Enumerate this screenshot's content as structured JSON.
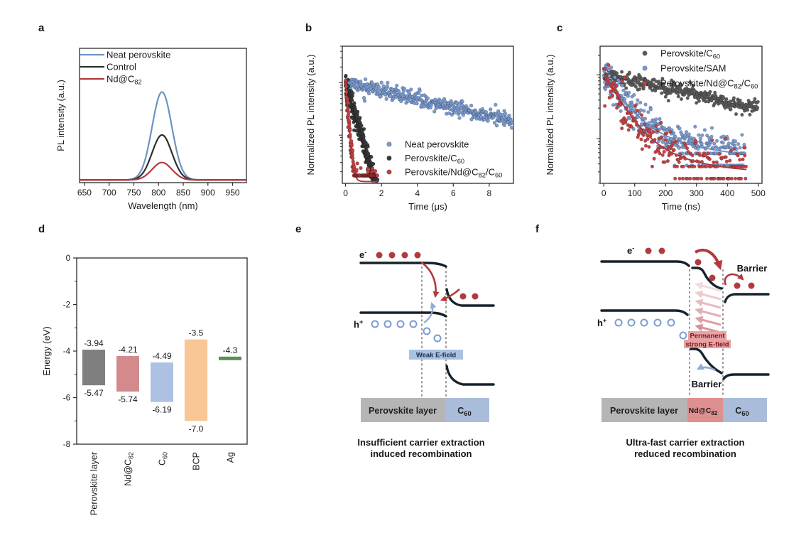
{
  "figure": {
    "background": "#ffffff",
    "panel_letters": {
      "a": "a",
      "b": "b",
      "c": "c",
      "d": "d",
      "e": "e",
      "f": "f"
    }
  },
  "chart_data": [
    {
      "panel": "a",
      "type": "line",
      "title": "",
      "xlabel": "Wavelength (nm)",
      "ylabel": "PL intensity (a.u.)",
      "xlim": [
        640,
        978
      ],
      "xticks": [
        650,
        700,
        750,
        800,
        850,
        900,
        950
      ],
      "peak_center_nm": 807,
      "peak_sigma_nm": 20,
      "baseline": 0.02,
      "legend_position": "top-left",
      "series": [
        {
          "name": "Neat perovskite",
          "segments": [
            {
              "text": "Neat perovskite"
            }
          ],
          "color": "#6e92c3",
          "peak": 0.655
        },
        {
          "name": "Control",
          "segments": [
            {
              "text": "Control"
            }
          ],
          "color": "#2e2e2e",
          "peak": 0.335
        },
        {
          "name": "Nd@C82",
          "segments": [
            {
              "text": "Nd@C"
            },
            {
              "text": "82",
              "sub": true
            }
          ],
          "color": "#b23a3c",
          "peak": 0.13
        }
      ]
    },
    {
      "panel": "b",
      "type": "decay",
      "xlabel": "Time (μs)",
      "ylabel": "Normalized PL intensity (a.u.)",
      "xlim": [
        -0.18,
        9.35
      ],
      "xticks": [
        0,
        2,
        4,
        6,
        8
      ],
      "yaxis": {
        "scale": "log",
        "top_value": 5,
        "decades": 2.62
      },
      "legend_position": "bottom-right",
      "series": [
        {
          "name": "Neat perovskite",
          "segments": [
            {
              "text": "Neat perovskite"
            }
          ],
          "color": "#7b9cd2",
          "line_color": "#6d92cc",
          "components": [
            {
              "a": 1.0,
              "tau": 5.5
            }
          ],
          "floor": 0,
          "tmax": 9.3,
          "n": 400,
          "noise": 0.16,
          "seed": 11,
          "fit": false,
          "r": 2.4
        },
        {
          "name": "Perovskite/C60",
          "segments": [
            {
              "text": "Perovskite/C"
            },
            {
              "text": "60",
              "sub": true
            }
          ],
          "color": "#3a3a3a",
          "line_color": "#222222",
          "components": [
            {
              "a": 1.0,
              "tau": 0.38
            }
          ],
          "floor": 0,
          "tmax": 1.8,
          "n": 300,
          "noise": 0.25,
          "seed": 22,
          "fit": true,
          "r": 2.4
        },
        {
          "name": "Perovskite/Nd@C82/C60",
          "segments": [
            {
              "text": "Perovskite/Nd@C"
            },
            {
              "text": "82",
              "sub": true
            },
            {
              "text": "/C"
            },
            {
              "text": "60",
              "sub": true
            }
          ],
          "color": "#c44143",
          "line_color": "#b23537",
          "components": [
            {
              "a": 1.0,
              "tau": 0.1
            }
          ],
          "floor": 0.013,
          "tmax": 1.78,
          "n": 260,
          "noise": 0.25,
          "seed": 33,
          "fit": true,
          "r": 2.4
        }
      ]
    },
    {
      "panel": "c",
      "type": "decay",
      "xlabel": "Time (ns)",
      "ylabel": "Normalized PL intensity (a.u.)",
      "xlim": [
        -12,
        512
      ],
      "xticks": [
        0,
        100,
        200,
        300,
        400,
        500
      ],
      "yaxis": {
        "scale": "log",
        "top_value": 2.8,
        "decades": 2.15
      },
      "legend_position": "top-right",
      "series": [
        {
          "name": "Perovskite/C60",
          "segments": [
            {
              "text": "Perovskite/C"
            },
            {
              "text": "60",
              "sub": true
            }
          ],
          "color": "#5c5c5c",
          "line_color": "#454545",
          "components": [
            {
              "a": 1.0,
              "tau": 400
            }
          ],
          "floor": 0,
          "tmax": 500,
          "n": 360,
          "noise": 0.13,
          "seed": 44,
          "fit": true,
          "r": 2.3
        },
        {
          "name": "Perovskite/SAM",
          "segments": [
            {
              "text": "Perovskite/SAM"
            }
          ],
          "color": "#7b9cd2",
          "line_color": "#6d92cc",
          "components": [
            {
              "a": 0.85,
              "tau": 55
            },
            {
              "a": 0.12,
              "tau": 200
            }
          ],
          "floor": 0.045,
          "tmax": 458,
          "n": 360,
          "noise": 0.3,
          "seed": 55,
          "fit": true,
          "r": 2.3
        },
        {
          "name": "Perovskite/Nd@C82/C60",
          "segments": [
            {
              "text": "Perovskite/Nd@C"
            },
            {
              "text": "82",
              "sub": true
            },
            {
              "text": "/C"
            },
            {
              "text": "60",
              "sub": true
            }
          ],
          "color": "#c44143",
          "line_color": "#b23537",
          "components": [
            {
              "a": 0.9,
              "tau": 48
            },
            {
              "a": 0.1,
              "tau": 150
            }
          ],
          "floor": 0.028,
          "tmax": 462,
          "n": 230,
          "noise": 0.35,
          "seed": 66,
          "fit": true,
          "r": 2.3
        }
      ]
    },
    {
      "panel": "d",
      "type": "bar-range",
      "ylabel": "Energy (eV)",
      "ylim": [
        -8,
        0
      ],
      "yticks": [
        0,
        -2,
        -4,
        -6,
        -8
      ],
      "yminor_step": 1,
      "bars": [
        {
          "label": "Perovskite layer",
          "segments": [
            {
              "text": "Perovskite layer"
            }
          ],
          "color": "#7f7f7f",
          "top": -3.94,
          "bottom": -5.47,
          "top_label": "-3.94",
          "bottom_label": "-5.47"
        },
        {
          "label": "Nd@C82",
          "segments": [
            {
              "text": "Nd@C"
            },
            {
              "text": "82",
              "sub": true
            }
          ],
          "color": "#d48a8c",
          "top": -4.21,
          "bottom": -5.74,
          "top_label": "-4.21",
          "bottom_label": "-5.74"
        },
        {
          "label": "C60",
          "segments": [
            {
              "text": "C"
            },
            {
              "text": "60",
              "sub": true
            }
          ],
          "color": "#adc2e2",
          "top": -4.49,
          "bottom": -6.19,
          "top_label": "-4.49",
          "bottom_label": "-6.19"
        },
        {
          "label": "BCP",
          "segments": [
            {
              "text": "BCP"
            }
          ],
          "color": "#f8c795",
          "top": -3.5,
          "bottom": -7.0,
          "top_label": "-3.5",
          "bottom_label": "-7.0"
        },
        {
          "label": "Ag",
          "segments": [
            {
              "text": "Ag"
            }
          ],
          "color": "#5e8f52",
          "top": -4.3,
          "bottom": -4.45,
          "top_label": "-4.3",
          "bottom_label": "",
          "thin": true
        }
      ]
    }
  ],
  "diagram_e": {
    "electron": "e",
    "electron_sup": "-",
    "hole": "h",
    "hole_sup": "+",
    "field_label": "Weak E-field",
    "box_perovskite": "Perovskite layer",
    "box_c60_main": "C",
    "box_c60_sub": "60",
    "caption1": "Insufficient carrier extraction",
    "caption2": "induced recombination"
  },
  "diagram_f": {
    "electron": "e",
    "electron_sup": "-",
    "hole": "h",
    "hole_sup": "+",
    "barrier_top": "Barrier",
    "barrier_bottom": "Barrier",
    "field_line1": "Permanent",
    "field_line2": "strong E-field",
    "box_perovskite": "Perovskite layer",
    "box_nd_main": "Nd@C",
    "box_nd_sub": "82",
    "box_c60_main": "C",
    "box_c60_sub": "60",
    "caption1": "Ultra-fast carrier extraction",
    "caption2": "reduced recombination"
  }
}
